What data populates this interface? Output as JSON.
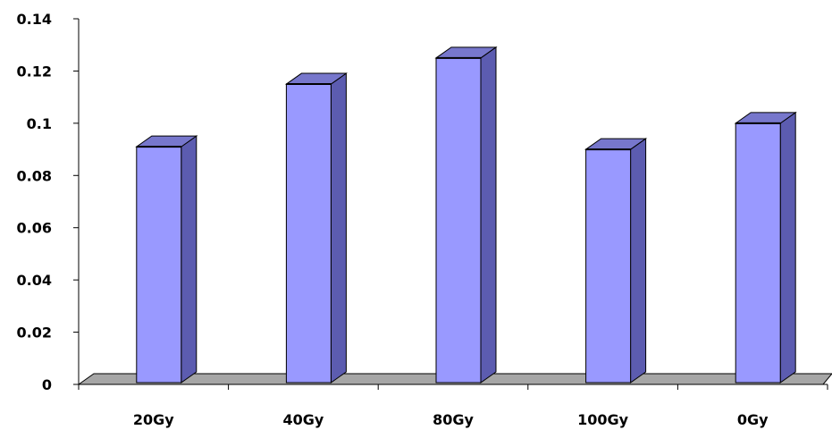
{
  "chart_data": {
    "type": "bar",
    "style": "3d-column",
    "categories": [
      "20Gy",
      "40Gy",
      "80Gy",
      "100Gy",
      "0Gy"
    ],
    "values": [
      0.091,
      0.115,
      0.125,
      0.09,
      0.1
    ],
    "ylim": [
      0,
      0.14
    ],
    "yticks": [
      "0",
      "0.02",
      "0.04",
      "0.06",
      "0.08",
      "0.1",
      "0.12",
      "0.14"
    ],
    "title": "",
    "xlabel": "",
    "ylabel": "",
    "grid": false,
    "legend": "none",
    "colors": {
      "bar_front": "#9999ff",
      "bar_side": "#5c5cb0",
      "bar_top": "#7777cc",
      "floor": "#a6a6a6",
      "outline": "#000000"
    }
  }
}
